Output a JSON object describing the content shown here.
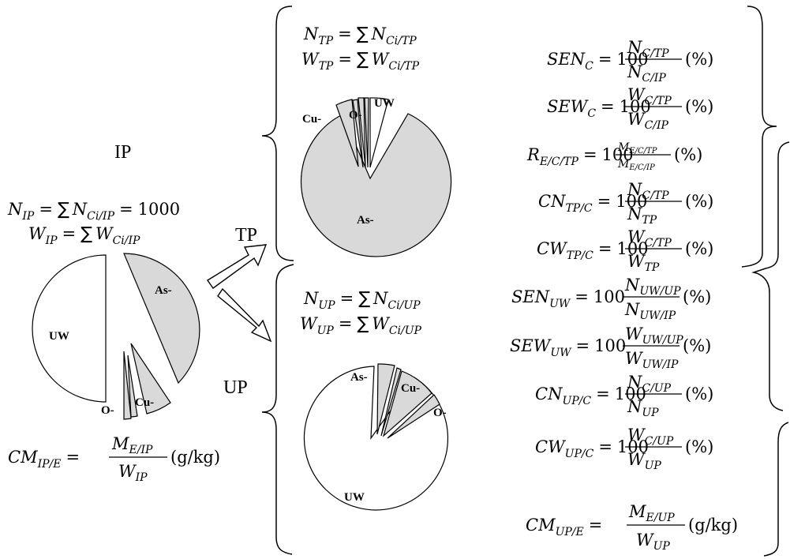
{
  "labels": {
    "ip": "IP",
    "tp": "TP",
    "up": "UP"
  },
  "ip_eq": {
    "n_sym": "N",
    "n_sub": "IP",
    "n_sum": "N",
    "n_sum_sub": "Ci/IP",
    "n_val": "1000",
    "w_sym": "W",
    "w_sub": "IP",
    "w_sum": "W",
    "w_sum_sub": "Ci/IP"
  },
  "ip_cm": {
    "sym": "CM",
    "sub": "IP/E",
    "num": "M",
    "num_sub": "E/IP",
    "den": "W",
    "den_sub": "IP",
    "unit": "(g/kg)"
  },
  "tp_eq": {
    "n_sym": "N",
    "n_sub": "TP",
    "n_sum_sub": "Ci/TP",
    "w_sym": "W",
    "w_sub": "TP",
    "w_sum_sub": "Ci/TP"
  },
  "up_eq": {
    "n_sym": "N",
    "n_sub": "UP",
    "n_sum_sub": "Ci/UP",
    "w_sym": "W",
    "w_sub": "UP",
    "w_sum_sub": "Ci/UP"
  },
  "pie_labels": {
    "ip_uw": "UW",
    "ip_as": "As-",
    "ip_cu": "Cu-",
    "ip_o": "O-",
    "tp_as": "As-",
    "tp_cu": "Cu-",
    "tp_o": "O-",
    "tp_uw": "UW",
    "up_uw": "UW",
    "up_as": "As-",
    "up_cu": "Cu-",
    "up_o": "O-"
  },
  "formulas": [
    {
      "lhs": "SEN",
      "lhs_sub": "C",
      "num": "N",
      "num_sub": "C/TP",
      "den": "N",
      "den_sub": "C/IP",
      "unit": "(%)"
    },
    {
      "lhs": "SEW",
      "lhs_sub": "C",
      "num": "W",
      "num_sub": "C/TP",
      "den": "W",
      "den_sub": "C/IP",
      "unit": "(%)"
    },
    {
      "lhs": "R",
      "lhs_sub": "E/C/TP",
      "num": "M",
      "num_sub": "E/C/TP",
      "den": "M",
      "den_sub": "E/C/IP",
      "unit": "(%)"
    },
    {
      "lhs": "CN",
      "lhs_sub": "TP/C",
      "num": "N",
      "num_sub": "C/TP",
      "den": "N",
      "den_sub": "TP",
      "unit": "(%)"
    },
    {
      "lhs": "CW",
      "lhs_sub": "TP/C",
      "num": "W",
      "num_sub": "C/TP",
      "den": "W",
      "den_sub": "TP",
      "unit": "(%)"
    },
    {
      "lhs": "SEN",
      "lhs_sub": "UW",
      "num": "N",
      "num_sub": "UW/UP",
      "den": "N",
      "den_sub": "UW/IP",
      "unit": "(%)"
    },
    {
      "lhs": "SEW",
      "lhs_sub": "UW",
      "num": "W",
      "num_sub": "UW/UP",
      "den": "W",
      "den_sub": "UW/IP",
      "unit": "(%)"
    },
    {
      "lhs": "CN",
      "lhs_sub": "UP/C",
      "num": "N",
      "num_sub": "C/UP",
      "den": "N",
      "den_sub": "UP",
      "unit": "(%)"
    },
    {
      "lhs": "CW",
      "lhs_sub": "UP/C",
      "num": "W",
      "num_sub": "C/UP",
      "den": "W",
      "den_sub": "UP",
      "unit": "(%)"
    }
  ],
  "cm_up": {
    "sym": "CM",
    "sub": "UP/E",
    "num": "M",
    "num_sub": "E/UP",
    "den": "W",
    "den_sub": "UP",
    "unit": "(g/kg)"
  },
  "common": {
    "hundred": "100",
    "eq": "=",
    "sum": "∑"
  },
  "colors": {
    "shaded": "#d9d9d9",
    "unshaded": "#ffffff",
    "stroke": "#000000"
  }
}
